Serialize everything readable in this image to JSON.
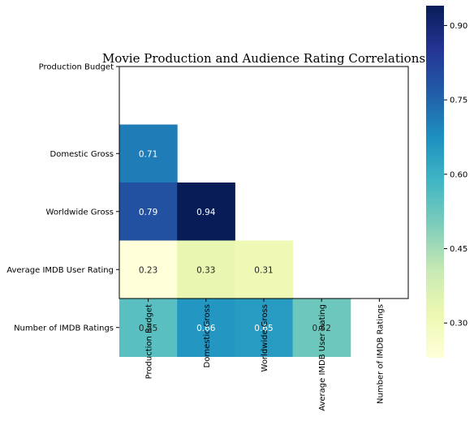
{
  "chart_data": {
    "type": "heatmap",
    "title": "Movie Production and Audience Rating Correlations",
    "labels": [
      "Production Budget",
      "Domestic Gross",
      "Worldwide Gross",
      "Average IMDB User Rating",
      "Number of IMDB Ratings"
    ],
    "cells": [
      {
        "row": 1,
        "col": 0,
        "value": 0.71,
        "label": "0.71"
      },
      {
        "row": 2,
        "col": 0,
        "value": 0.79,
        "label": "0.79"
      },
      {
        "row": 2,
        "col": 1,
        "value": 0.94,
        "label": "0.94"
      },
      {
        "row": 3,
        "col": 0,
        "value": 0.23,
        "label": "0.23"
      },
      {
        "row": 3,
        "col": 1,
        "value": 0.33,
        "label": "0.33"
      },
      {
        "row": 3,
        "col": 2,
        "value": 0.31,
        "label": "0.31"
      },
      {
        "row": 4,
        "col": 0,
        "value": 0.55,
        "label": "0.55"
      },
      {
        "row": 4,
        "col": 1,
        "value": 0.66,
        "label": "0.66"
      },
      {
        "row": 4,
        "col": 2,
        "value": 0.65,
        "label": "0.65"
      },
      {
        "row": 4,
        "col": 3,
        "value": 0.52,
        "label": "0.52"
      }
    ],
    "mask": "upper-triangle-and-diagonal",
    "colormap": "YlGnBu",
    "colorbar": {
      "range": [
        0.23,
        0.94
      ],
      "ticks": [
        0.3,
        0.45,
        0.6,
        0.75,
        0.9
      ],
      "tick_labels": [
        "0.30",
        "0.45",
        "0.60",
        "0.75",
        "0.90"
      ],
      "placement": "right"
    },
    "grid": false
  }
}
